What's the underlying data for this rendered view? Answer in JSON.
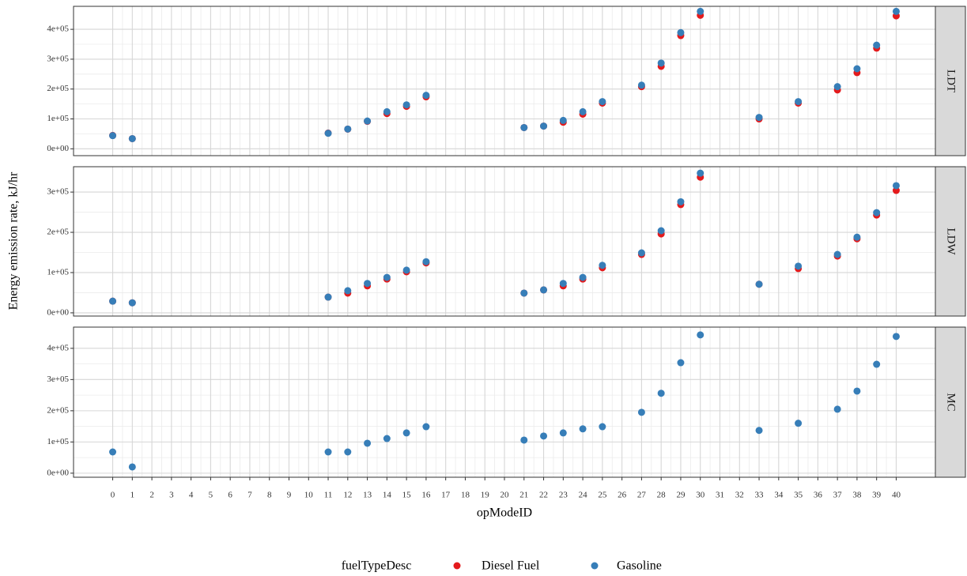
{
  "chart_data": {
    "type": "scatter",
    "x_label": "opModeID",
    "y_label": "Energy emission rate, kJ/hr",
    "legend_title": "fuelTypeDesc",
    "legend": "bottom",
    "grid": true,
    "x": [
      0,
      1,
      11,
      12,
      13,
      14,
      15,
      16,
      21,
      22,
      23,
      24,
      25,
      27,
      28,
      29,
      30,
      33,
      35,
      37,
      38,
      39,
      40
    ],
    "xlim": [
      -2,
      42
    ],
    "xticks": [
      0,
      1,
      2,
      3,
      4,
      5,
      6,
      7,
      8,
      9,
      10,
      11,
      12,
      13,
      14,
      15,
      16,
      17,
      18,
      19,
      20,
      21,
      22,
      23,
      24,
      25,
      26,
      27,
      28,
      29,
      30,
      31,
      32,
      33,
      34,
      35,
      36,
      37,
      38,
      39,
      40
    ],
    "series": [
      {
        "name": "Diesel Fuel",
        "color": "#e41a1c"
      },
      {
        "name": "Gasoline",
        "color": "#377eb8"
      }
    ],
    "facets": [
      {
        "label": "LDT",
        "ylim": [
          -23000,
          477000
        ],
        "yticks": [
          {
            "value": 0,
            "label": "0e+00"
          },
          {
            "value": 100000,
            "label": "1e+05"
          },
          {
            "value": 200000,
            "label": "2e+05"
          },
          {
            "value": 300000,
            "label": "3e+05"
          },
          {
            "value": 400000,
            "label": "4e+05"
          }
        ],
        "values": [
          [
            44700,
            34000,
            52600,
            65800,
            92000,
            118000,
            142000,
            174000,
            71000,
            76000,
            89000,
            116000,
            153000,
            208000,
            276000,
            379000,
            447000,
            100000,
            153000,
            197000,
            255000,
            337000,
            445000
          ],
          [
            44000,
            34000,
            52000,
            66000,
            93000,
            124000,
            147000,
            179000,
            71000,
            76000,
            95000,
            124000,
            158000,
            213000,
            287000,
            389000,
            460000,
            105000,
            158000,
            208000,
            268000,
            347000,
            460000
          ]
        ]
      },
      {
        "label": "LDW",
        "ylim": [
          -8000,
          363000
        ],
        "yticks": [
          {
            "value": 0,
            "label": "0e+00"
          },
          {
            "value": 100000,
            "label": "1e+05"
          },
          {
            "value": 200000,
            "label": "2e+05"
          },
          {
            "value": 300000,
            "label": "3e+05"
          }
        ],
        "values": [
          [
            29000,
            25000,
            39000,
            49000,
            67000,
            84000,
            102000,
            124000,
            49000,
            57000,
            67000,
            84000,
            112000,
            145000,
            196000,
            269000,
            337000,
            71000,
            110000,
            141000,
            184000,
            243000,
            304000
          ],
          [
            29000,
            25000,
            39000,
            55000,
            73000,
            88000,
            106000,
            127000,
            49000,
            57000,
            73000,
            88000,
            118000,
            149000,
            204000,
            276000,
            347000,
            71000,
            116000,
            145000,
            188000,
            249000,
            316000
          ]
        ]
      },
      {
        "label": "MC",
        "ylim": [
          -13000,
          468000
        ],
        "yticks": [
          {
            "value": 0,
            "label": "0e+00"
          },
          {
            "value": 100000,
            "label": "1e+05"
          },
          {
            "value": 200000,
            "label": "2e+05"
          },
          {
            "value": 300000,
            "label": "3e+05"
          },
          {
            "value": 400000,
            "label": "4e+05"
          }
        ],
        "values": [
          [
            null,
            null,
            null,
            null,
            null,
            null,
            null,
            null,
            null,
            null,
            null,
            null,
            null,
            null,
            null,
            null,
            null,
            null,
            null,
            null,
            null,
            null,
            null
          ],
          [
            68000,
            20000,
            68000,
            68000,
            96000,
            111000,
            129000,
            149000,
            106000,
            119000,
            129000,
            142000,
            149000,
            195000,
            256000,
            354000,
            443000,
            137000,
            160000,
            205000,
            263000,
            349000,
            438000
          ]
        ]
      }
    ]
  }
}
